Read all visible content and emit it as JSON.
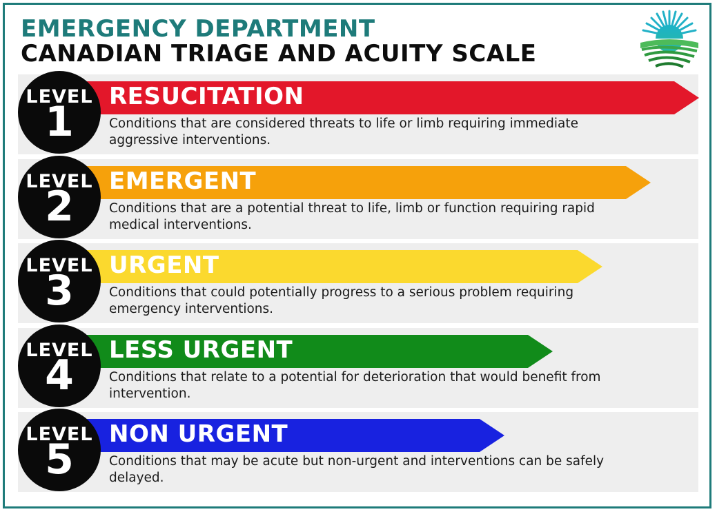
{
  "header": {
    "title_line1": "EMERGENCY DEPARTMENT",
    "title_line2": "CANADIAN TRIAGE AND ACUITY SCALE",
    "logo_icon": "sun-fields-logo-icon"
  },
  "levels": [
    {
      "level_label": "LEVEL",
      "number": "1",
      "name": "RESUCITATION",
      "color": "#e3172a",
      "description": "Conditions that are considered threats to life or limb requiring immediate aggressive interventions."
    },
    {
      "level_label": "LEVEL",
      "number": "2",
      "name": "EMERGENT",
      "color": "#f6a10b",
      "description": "Conditions that are a potential threat to life, limb or function requiring rapid medical interventions."
    },
    {
      "level_label": "LEVEL",
      "number": "3",
      "name": "URGENT",
      "color": "#fbd92e",
      "description": "Conditions that could potentially progress to a serious problem requiring emergency interventions."
    },
    {
      "level_label": "LEVEL",
      "number": "4",
      "name": "LESS URGENT",
      "color": "#118b1a",
      "description": "Conditions that relate to a potential for deterioration that would benefit from intervention."
    },
    {
      "level_label": "LEVEL",
      "number": "5",
      "name": "NON URGENT",
      "color": "#1822e0",
      "description": "Conditions that may be acute but non-urgent and interventions can be safely delayed."
    }
  ]
}
